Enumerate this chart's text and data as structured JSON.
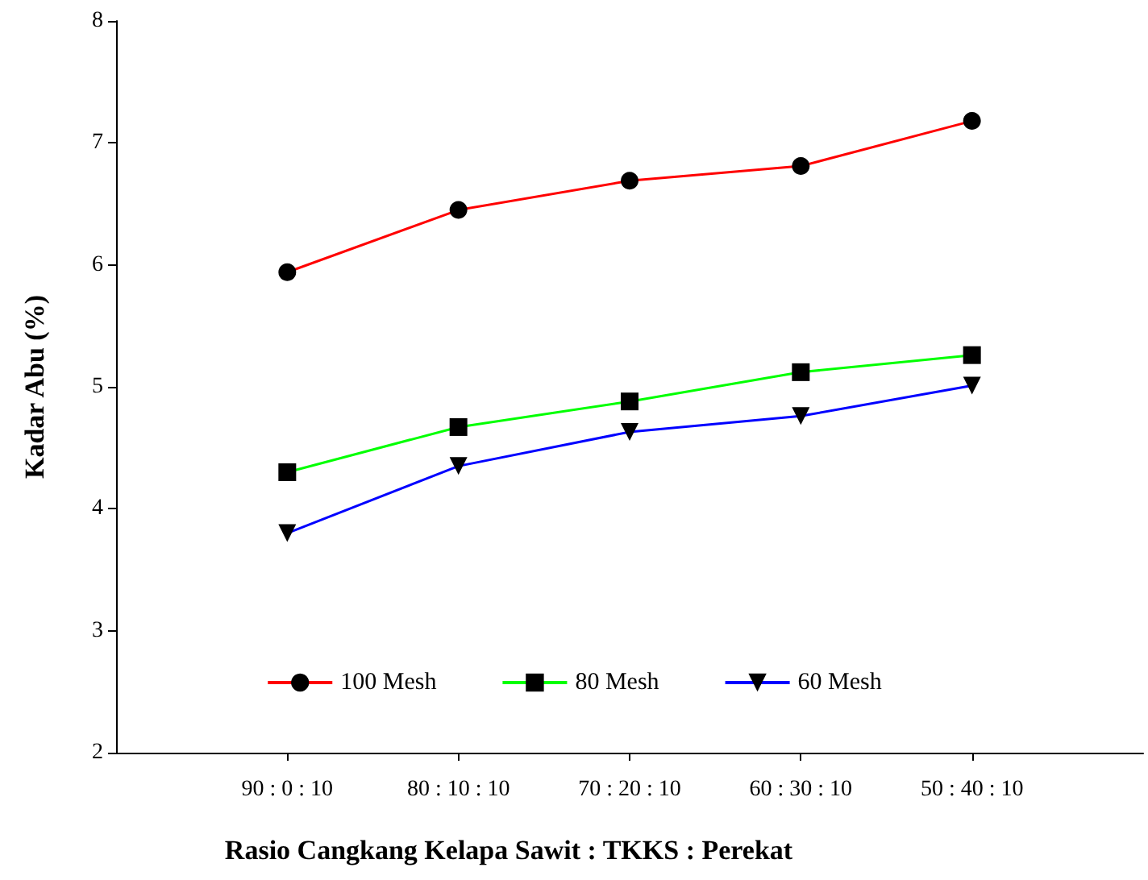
{
  "chart_data": {
    "type": "line",
    "xlabel": "Rasio Cangkang Kelapa Sawit : TKKS : Perekat",
    "ylabel": "Kadar Abu (%)",
    "categories": [
      "90 : 0 : 10",
      "80 : 10 : 10",
      "70 : 20 : 10",
      "60 : 30 : 10",
      "50 : 40 : 10"
    ],
    "series": [
      {
        "name": "100 Mesh",
        "color": "#ff0000",
        "marker": "circle",
        "values": [
          5.94,
          6.45,
          6.69,
          6.81,
          7.18
        ]
      },
      {
        "name": "80 Mesh",
        "color": "#00ff00",
        "marker": "square",
        "values": [
          4.3,
          4.67,
          4.88,
          5.12,
          5.26
        ]
      },
      {
        "name": "60 Mesh",
        "color": "#0000ff",
        "marker": "triangle",
        "values": [
          3.8,
          4.35,
          4.63,
          4.76,
          5.01
        ]
      }
    ],
    "ylim": [
      2,
      8
    ],
    "yticks": [
      2,
      3,
      4,
      5,
      6,
      7,
      8
    ],
    "grid": false,
    "legend": "bottom",
    "line_style": "solid"
  }
}
